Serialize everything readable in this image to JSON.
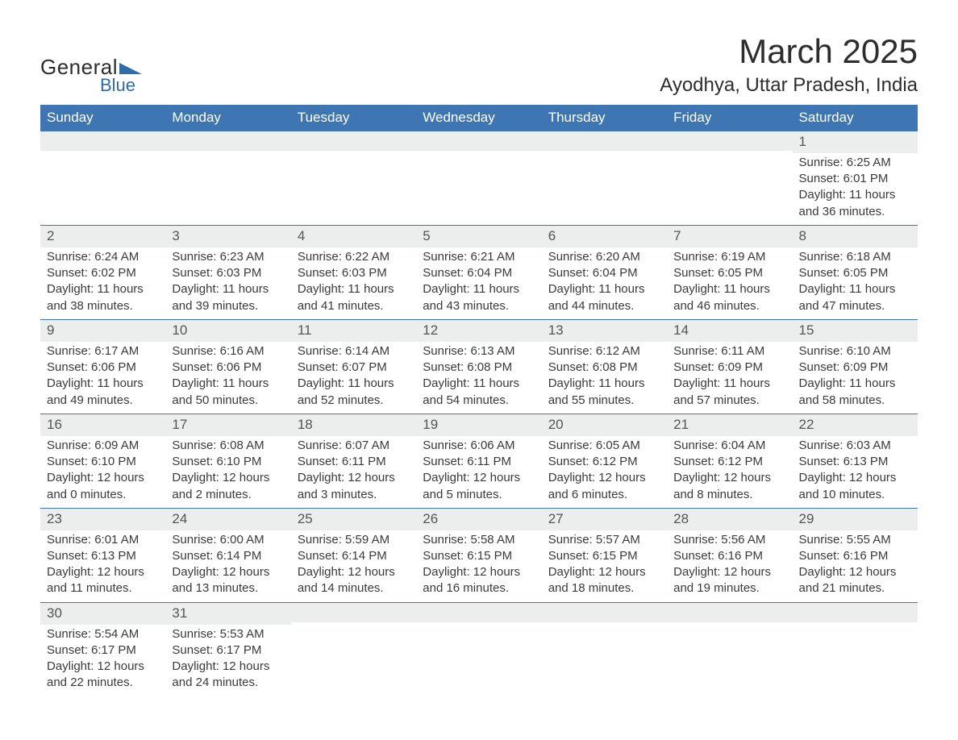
{
  "logo": {
    "word1": "General",
    "word2": "Blue",
    "triangle_color": "#2f6da9"
  },
  "title": "March 2025",
  "location": "Ayodhya, Uttar Pradesh, India",
  "colors": {
    "header_bg": "#3d76b3",
    "header_text": "#ffffff",
    "row_border": "#3d76b3",
    "daynum_bg": "#eceded",
    "body_text": "#3a3a3a",
    "page_bg": "#ffffff"
  },
  "weekdays": [
    "Sunday",
    "Monday",
    "Tuesday",
    "Wednesday",
    "Thursday",
    "Friday",
    "Saturday"
  ],
  "layout": {
    "first_weekday_index": 6,
    "rows": 6,
    "cols": 7
  },
  "days": [
    {
      "n": 1,
      "sr": "6:25 AM",
      "ss": "6:01 PM",
      "dl": "11 hours and 36 minutes."
    },
    {
      "n": 2,
      "sr": "6:24 AM",
      "ss": "6:02 PM",
      "dl": "11 hours and 38 minutes."
    },
    {
      "n": 3,
      "sr": "6:23 AM",
      "ss": "6:03 PM",
      "dl": "11 hours and 39 minutes."
    },
    {
      "n": 4,
      "sr": "6:22 AM",
      "ss": "6:03 PM",
      "dl": "11 hours and 41 minutes."
    },
    {
      "n": 5,
      "sr": "6:21 AM",
      "ss": "6:04 PM",
      "dl": "11 hours and 43 minutes."
    },
    {
      "n": 6,
      "sr": "6:20 AM",
      "ss": "6:04 PM",
      "dl": "11 hours and 44 minutes."
    },
    {
      "n": 7,
      "sr": "6:19 AM",
      "ss": "6:05 PM",
      "dl": "11 hours and 46 minutes."
    },
    {
      "n": 8,
      "sr": "6:18 AM",
      "ss": "6:05 PM",
      "dl": "11 hours and 47 minutes."
    },
    {
      "n": 9,
      "sr": "6:17 AM",
      "ss": "6:06 PM",
      "dl": "11 hours and 49 minutes."
    },
    {
      "n": 10,
      "sr": "6:16 AM",
      "ss": "6:06 PM",
      "dl": "11 hours and 50 minutes."
    },
    {
      "n": 11,
      "sr": "6:14 AM",
      "ss": "6:07 PM",
      "dl": "11 hours and 52 minutes."
    },
    {
      "n": 12,
      "sr": "6:13 AM",
      "ss": "6:08 PM",
      "dl": "11 hours and 54 minutes."
    },
    {
      "n": 13,
      "sr": "6:12 AM",
      "ss": "6:08 PM",
      "dl": "11 hours and 55 minutes."
    },
    {
      "n": 14,
      "sr": "6:11 AM",
      "ss": "6:09 PM",
      "dl": "11 hours and 57 minutes."
    },
    {
      "n": 15,
      "sr": "6:10 AM",
      "ss": "6:09 PM",
      "dl": "11 hours and 58 minutes."
    },
    {
      "n": 16,
      "sr": "6:09 AM",
      "ss": "6:10 PM",
      "dl": "12 hours and 0 minutes."
    },
    {
      "n": 17,
      "sr": "6:08 AM",
      "ss": "6:10 PM",
      "dl": "12 hours and 2 minutes."
    },
    {
      "n": 18,
      "sr": "6:07 AM",
      "ss": "6:11 PM",
      "dl": "12 hours and 3 minutes."
    },
    {
      "n": 19,
      "sr": "6:06 AM",
      "ss": "6:11 PM",
      "dl": "12 hours and 5 minutes."
    },
    {
      "n": 20,
      "sr": "6:05 AM",
      "ss": "6:12 PM",
      "dl": "12 hours and 6 minutes."
    },
    {
      "n": 21,
      "sr": "6:04 AM",
      "ss": "6:12 PM",
      "dl": "12 hours and 8 minutes."
    },
    {
      "n": 22,
      "sr": "6:03 AM",
      "ss": "6:13 PM",
      "dl": "12 hours and 10 minutes."
    },
    {
      "n": 23,
      "sr": "6:01 AM",
      "ss": "6:13 PM",
      "dl": "12 hours and 11 minutes."
    },
    {
      "n": 24,
      "sr": "6:00 AM",
      "ss": "6:14 PM",
      "dl": "12 hours and 13 minutes."
    },
    {
      "n": 25,
      "sr": "5:59 AM",
      "ss": "6:14 PM",
      "dl": "12 hours and 14 minutes."
    },
    {
      "n": 26,
      "sr": "5:58 AM",
      "ss": "6:15 PM",
      "dl": "12 hours and 16 minutes."
    },
    {
      "n": 27,
      "sr": "5:57 AM",
      "ss": "6:15 PM",
      "dl": "12 hours and 18 minutes."
    },
    {
      "n": 28,
      "sr": "5:56 AM",
      "ss": "6:16 PM",
      "dl": "12 hours and 19 minutes."
    },
    {
      "n": 29,
      "sr": "5:55 AM",
      "ss": "6:16 PM",
      "dl": "12 hours and 21 minutes."
    },
    {
      "n": 30,
      "sr": "5:54 AM",
      "ss": "6:17 PM",
      "dl": "12 hours and 22 minutes."
    },
    {
      "n": 31,
      "sr": "5:53 AM",
      "ss": "6:17 PM",
      "dl": "12 hours and 24 minutes."
    }
  ],
  "labels": {
    "sunrise": "Sunrise:",
    "sunset": "Sunset:",
    "daylight": "Daylight:"
  }
}
